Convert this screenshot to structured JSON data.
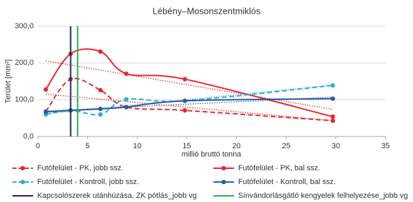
{
  "chart_data": {
    "type": "line",
    "title": "Lébény–Mosonszentmiklós",
    "x_label": "millió bruttó tonna",
    "y_label": "Terület [mm²]",
    "xlim": [
      0,
      35
    ],
    "xticks": [
      0,
      5,
      10,
      15,
      20,
      25,
      30,
      35
    ],
    "ylim": [
      0,
      300
    ],
    "yticks": [
      {
        "value": 0,
        "label": "0,0"
      },
      {
        "value": 100,
        "label": "100,0"
      },
      {
        "value": 200,
        "label": "200,0"
      },
      {
        "value": 300,
        "label": "300,0"
      }
    ],
    "grid": true,
    "smooth": true,
    "trendline": true,
    "legend": "bottom",
    "series": [
      {
        "name": "Futófelület - PK, jobb ssz.",
        "color": "#e8262c",
        "dash": true,
        "x": [
          0.8,
          3.3,
          6.3,
          8.9,
          14.8,
          29.7
        ],
        "values": [
          68,
          156,
          126,
          80,
          71,
          43
        ]
      },
      {
        "name": "Futófelület - PK, bal ssz.",
        "color": "#e8262c",
        "dash": false,
        "x": [
          0.8,
          3.3,
          6.3,
          8.9,
          14.8,
          29.7
        ],
        "values": [
          128,
          225,
          231,
          171,
          156,
          54
        ]
      },
      {
        "name": "Futófelület - Kontroll, jobb ssz.",
        "color": "#2eaadc",
        "dash": true,
        "x": [
          0.8,
          3.3,
          6.3,
          8.9,
          14.8,
          29.7
        ],
        "values": [
          60,
          71,
          60,
          101,
          97,
          139
        ]
      },
      {
        "name": "Futófelület - Kontroll, bal ssz.",
        "color": "#2a5b9c",
        "dash": false,
        "x": [
          0.8,
          3.3,
          6.3,
          8.9,
          14.8,
          29.7
        ],
        "values": [
          67,
          71,
          75,
          80,
          97,
          103
        ]
      }
    ],
    "vlines": [
      {
        "name": "Kapcsolószerek utánhúzása, ZK pótlás_jobb vg",
        "color": "#1f1f5a",
        "x": 3.3
      },
      {
        "name": "Sínvándorlásgátló kengyelek felhelyezése_jobb vg",
        "color": "#22b04a",
        "x": 4
      }
    ]
  }
}
